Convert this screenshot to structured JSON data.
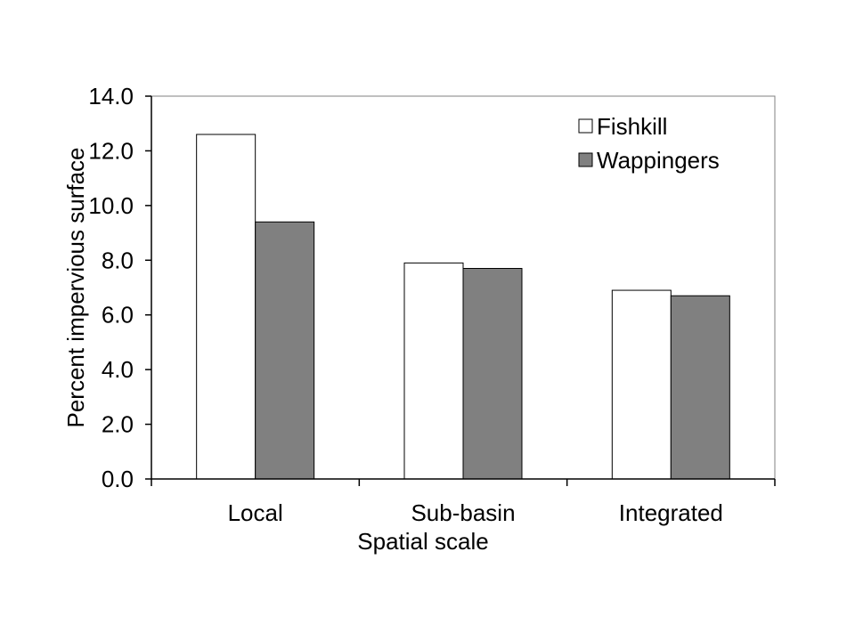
{
  "chart_data": {
    "type": "bar",
    "title": "",
    "xlabel": "Spatial scale",
    "ylabel": "Percent impervious surface",
    "categories": [
      "Local",
      "Sub-basin",
      "Integrated"
    ],
    "series": [
      {
        "name": "Fishkill",
        "values": [
          12.6,
          7.9,
          6.9
        ],
        "color": "#ffffff"
      },
      {
        "name": "Wappingers",
        "values": [
          9.4,
          7.7,
          6.7
        ],
        "color": "#808080"
      }
    ],
    "ylim": [
      0,
      14
    ],
    "yticks": [
      "0.0",
      "2.0",
      "4.0",
      "6.0",
      "8.0",
      "10.0",
      "12.0",
      "14.0"
    ],
    "grid": false,
    "legend_position": "top-right"
  }
}
